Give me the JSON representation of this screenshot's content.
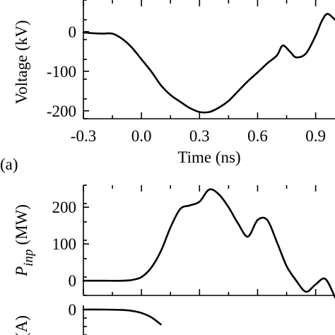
{
  "chart_data": [
    {
      "panel_label": "(a)",
      "type": "line",
      "xlabel": "Time (ns)",
      "ylabel": "Voltage  (kV)",
      "xlim": [
        -0.3,
        1.0
      ],
      "ylim": [
        -220,
        80
      ],
      "xticks": [
        "-0.3",
        "0.0",
        "0.3",
        "0.6",
        "0.9"
      ],
      "xtick_values": [
        -0.3,
        0.0,
        0.3,
        0.6,
        0.9
      ],
      "yticks": [
        "0",
        "-100",
        "-200"
      ],
      "ytick_values": [
        0,
        -100,
        -200
      ],
      "series": [
        {
          "x": [
            -0.3,
            -0.25,
            -0.2,
            -0.15,
            -0.1,
            -0.05,
            0.0,
            0.05,
            0.1,
            0.15,
            0.2,
            0.25,
            0.3,
            0.35,
            0.4,
            0.45,
            0.5,
            0.55,
            0.6,
            0.65,
            0.7,
            0.73,
            0.77,
            0.8,
            0.85,
            0.9,
            0.93,
            0.96,
            1.0
          ],
          "y": [
            -2,
            -4,
            -5,
            -5,
            -18,
            -40,
            -70,
            -100,
            -135,
            -160,
            -177,
            -193,
            -203,
            -203,
            -192,
            -175,
            -150,
            -125,
            -103,
            -80,
            -60,
            -35,
            -52,
            -65,
            -55,
            -10,
            25,
            45,
            30
          ]
        }
      ]
    },
    {
      "type": "line",
      "ylabel": "P",
      "ylabel_sub": "inp",
      "ylabel_unit": "(MW)",
      "xlim": [
        -0.3,
        1.0
      ],
      "ylim": [
        -40,
        260
      ],
      "yticks": [
        "200",
        "100",
        "0"
      ],
      "ytick_values": [
        200,
        100,
        0
      ],
      "series": [
        {
          "x": [
            -0.3,
            -0.2,
            -0.1,
            -0.05,
            0.0,
            0.05,
            0.1,
            0.15,
            0.2,
            0.25,
            0.3,
            0.35,
            0.4,
            0.45,
            0.5,
            0.55,
            0.6,
            0.65,
            0.7,
            0.75,
            0.8,
            0.85,
            0.9,
            0.95,
            1.0
          ],
          "y": [
            0,
            0,
            0,
            2,
            10,
            35,
            80,
            145,
            195,
            205,
            215,
            248,
            235,
            200,
            155,
            120,
            165,
            165,
            105,
            40,
            0,
            -30,
            -10,
            5,
            -45
          ]
        }
      ]
    },
    {
      "type": "line",
      "ylabel": "(A)",
      "xlim": [
        -0.3,
        1.0
      ],
      "ylim": [
        -60,
        10
      ],
      "yticks": [
        "0"
      ],
      "ytick_values": [
        0
      ],
      "series": [
        {
          "x": [
            -0.3,
            -0.2,
            -0.1,
            -0.05,
            0.0,
            0.05,
            0.1
          ],
          "y": [
            0,
            0,
            -1,
            -3,
            -8,
            -18,
            -35
          ]
        }
      ]
    }
  ]
}
